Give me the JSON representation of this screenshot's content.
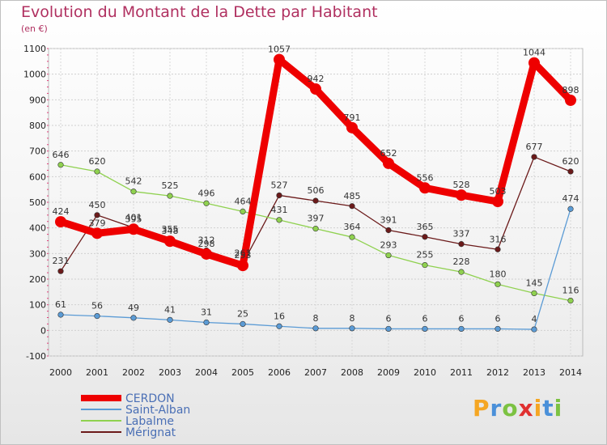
{
  "chart_data": {
    "type": "line",
    "title": "Evolution du Montant de la Dette par Habitant",
    "subtitle": "(en €)",
    "x": [
      "2000",
      "2001",
      "2002",
      "2003",
      "2004",
      "2005",
      "2006",
      "2007",
      "2008",
      "2009",
      "2010",
      "2011",
      "2012",
      "2013",
      "2014"
    ],
    "ylim": [
      -100,
      1100
    ],
    "yticks": [
      "-100",
      "0",
      "100",
      "200",
      "300",
      "400",
      "500",
      "600",
      "700",
      "800",
      "900",
      "1000",
      "1100"
    ],
    "grid": true,
    "legend_position": "bottom-left",
    "series": [
      {
        "name": "CERDON",
        "color": "#ee0000",
        "values": [
          424,
          379,
          395,
          348,
          298,
          253,
          1057,
          942,
          791,
          652,
          556,
          528,
          503,
          1044,
          898
        ]
      },
      {
        "name": "Saint-Alban",
        "color": "#5b9bd5",
        "values": [
          61,
          56,
          49,
          41,
          31,
          25,
          16,
          8,
          8,
          6,
          6,
          6,
          6,
          4,
          474
        ]
      },
      {
        "name": "Labalme",
        "color": "#8fd14f",
        "values": [
          646,
          620,
          542,
          525,
          496,
          464,
          431,
          397,
          364,
          293,
          255,
          228,
          180,
          145,
          116
        ]
      },
      {
        "name": "Mérignat",
        "color": "#6b1a1a",
        "values": [
          231,
          450,
          401,
          355,
          312,
          261,
          527,
          506,
          485,
          391,
          365,
          337,
          316,
          677,
          620
        ]
      }
    ]
  },
  "logo": {
    "text": "Proxiti"
  }
}
